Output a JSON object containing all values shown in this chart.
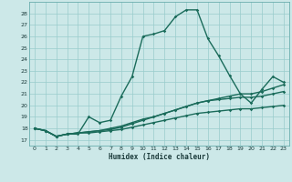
{
  "xlabel": "Humidex (Indice chaleur)",
  "bg_color": "#cce8e8",
  "grid_color": "#99cccc",
  "line_color": "#1a6b5a",
  "xlim": [
    -0.5,
    23.5
  ],
  "ylim": [
    16.5,
    29.0
  ],
  "xticks": [
    0,
    1,
    2,
    3,
    4,
    5,
    6,
    7,
    8,
    9,
    10,
    11,
    12,
    13,
    14,
    15,
    16,
    17,
    18,
    19,
    20,
    21,
    22,
    23
  ],
  "yticks": [
    17,
    18,
    19,
    20,
    21,
    22,
    23,
    24,
    25,
    26,
    27,
    28
  ],
  "series": [
    [
      18.0,
      17.8,
      17.3,
      17.5,
      17.5,
      19.0,
      18.5,
      18.7,
      20.8,
      22.5,
      26.0,
      26.2,
      26.5,
      27.7,
      28.3,
      28.3,
      25.8,
      24.3,
      22.6,
      21.0,
      20.2,
      21.4,
      22.5,
      22.0
    ],
    [
      18.0,
      17.8,
      17.3,
      17.5,
      17.6,
      17.7,
      17.8,
      17.9,
      18.1,
      18.4,
      18.7,
      19.0,
      19.3,
      19.6,
      19.9,
      20.2,
      20.4,
      20.6,
      20.8,
      21.0,
      21.0,
      21.2,
      21.5,
      21.8
    ],
    [
      18.0,
      17.8,
      17.3,
      17.5,
      17.6,
      17.7,
      17.8,
      18.0,
      18.2,
      18.5,
      18.8,
      19.0,
      19.3,
      19.6,
      19.9,
      20.2,
      20.4,
      20.5,
      20.6,
      20.7,
      20.7,
      20.8,
      21.0,
      21.2
    ],
    [
      18.0,
      17.8,
      17.3,
      17.5,
      17.6,
      17.6,
      17.7,
      17.8,
      17.9,
      18.1,
      18.3,
      18.5,
      18.7,
      18.9,
      19.1,
      19.3,
      19.4,
      19.5,
      19.6,
      19.7,
      19.7,
      19.8,
      19.9,
      20.0
    ]
  ]
}
